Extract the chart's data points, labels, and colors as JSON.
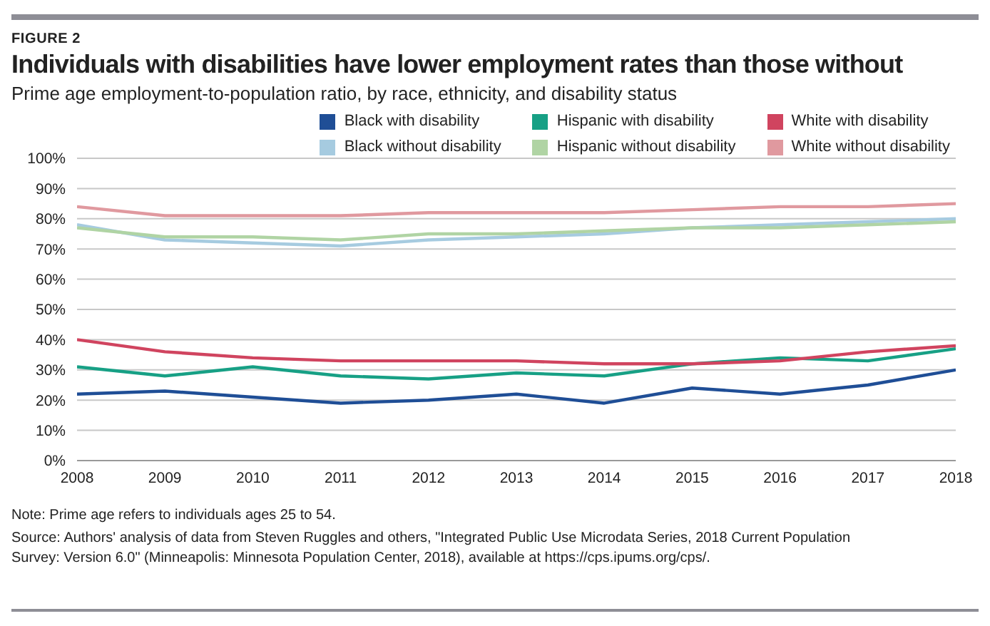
{
  "chart_data": {
    "type": "line",
    "title": "Individuals with disabilities have lower employment rates than those without",
    "subtitle": "Prime age employment-to-population ratio, by race, ethnicity, and disability status",
    "annotations": [
      "FIGURE 2",
      "Note: Prime age refers to individuals ages 25 to 54.",
      "Source: Authors' analysis of data from Steven Ruggles and others, \"Integrated Public Use Microdata Series, 2018 Current Population Survey: Version 6.0\" (Minneapolis: Minnesota Population Center, 2018), available at https://cps.ipums.org/cps/."
    ],
    "x": [
      2008,
      2009,
      2010,
      2011,
      2012,
      2013,
      2014,
      2015,
      2016,
      2017,
      2018
    ],
    "xlim": [
      2008,
      2018
    ],
    "xticks": [
      2008,
      2009,
      2010,
      2011,
      2012,
      2013,
      2014,
      2015,
      2016,
      2017,
      2018
    ],
    "ylim": [
      0,
      100
    ],
    "yticks": [
      {
        "value": 0,
        "label": "0%"
      },
      {
        "value": 10,
        "label": "10%"
      },
      {
        "value": 20,
        "label": "20%"
      },
      {
        "value": 30,
        "label": "30%"
      },
      {
        "value": 40,
        "label": "40%"
      },
      {
        "value": 50,
        "label": "50%"
      },
      {
        "value": 60,
        "label": "60%"
      },
      {
        "value": 70,
        "label": "70%"
      },
      {
        "value": 80,
        "label": "80%"
      },
      {
        "value": 90,
        "label": "90%"
      },
      {
        "value": 100,
        "label": "100%"
      }
    ],
    "grid": "y",
    "legend": "top right",
    "marker": "none",
    "line_style": "solid",
    "series": [
      {
        "name": "Black with disability",
        "color": "#1f4e96",
        "values": [
          22,
          23,
          21,
          19,
          20,
          22,
          19,
          24,
          22,
          25,
          30
        ]
      },
      {
        "name": "Hispanic with disability",
        "color": "#17a085",
        "values": [
          31,
          28,
          31,
          28,
          27,
          29,
          28,
          32,
          34,
          33,
          37
        ]
      },
      {
        "name": "White with disability",
        "color": "#d0445f",
        "values": [
          40,
          36,
          34,
          33,
          33,
          33,
          32,
          32,
          33,
          36,
          38
        ]
      },
      {
        "name": "Black without disability",
        "color": "#a6cbe0",
        "values": [
          78,
          73,
          72,
          71,
          73,
          74,
          75,
          77,
          78,
          79,
          80
        ]
      },
      {
        "name": "Hispanic without disability",
        "color": "#b0d4a4",
        "values": [
          77,
          74,
          74,
          73,
          75,
          75,
          76,
          77,
          77,
          78,
          79
        ]
      },
      {
        "name": "White without disability",
        "color": "#e0999f",
        "values": [
          84,
          81,
          81,
          81,
          82,
          82,
          82,
          83,
          84,
          84,
          85
        ]
      }
    ]
  }
}
